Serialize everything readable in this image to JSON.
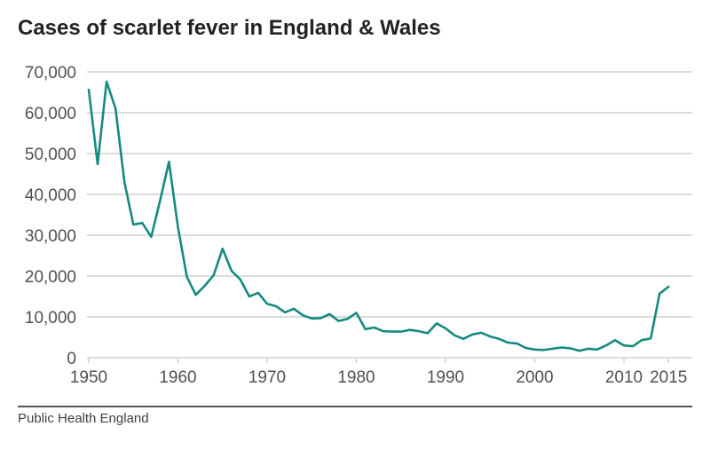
{
  "header": {
    "title": "Cases of scarlet fever in England & Wales"
  },
  "footer": {
    "source": "Public Health England"
  },
  "colors": {
    "line": "#168A80",
    "grid": "#dcdcdc",
    "axis_text": "#505050",
    "divider": "#555555"
  },
  "chart_data": {
    "type": "line",
    "title": "Cases of scarlet fever in England & Wales",
    "xlabel": "",
    "ylabel": "",
    "ylim": [
      0,
      70000
    ],
    "xlim": [
      1950,
      2015
    ],
    "grid": true,
    "legend": null,
    "y_ticks": [
      "0",
      "10,000",
      "20,000",
      "30,000",
      "40,000",
      "50,000",
      "60,000",
      "70,000"
    ],
    "x_ticks": [
      "1950",
      "1960",
      "1970",
      "1980",
      "1990",
      "2000",
      "2010",
      "2015"
    ],
    "x": [
      1950,
      1951,
      1952,
      1953,
      1954,
      1955,
      1956,
      1957,
      1958,
      1959,
      1960,
      1961,
      1962,
      1963,
      1964,
      1965,
      1966,
      1967,
      1968,
      1969,
      1970,
      1971,
      1972,
      1973,
      1974,
      1975,
      1976,
      1977,
      1978,
      1979,
      1980,
      1981,
      1982,
      1983,
      1984,
      1985,
      1986,
      1987,
      1988,
      1989,
      1990,
      1991,
      1992,
      1993,
      1994,
      1995,
      1996,
      1997,
      1998,
      1999,
      2000,
      2001,
      2002,
      2003,
      2004,
      2005,
      2006,
      2007,
      2008,
      2009,
      2010,
      2011,
      2012,
      2013,
      2014,
      2015
    ],
    "series": [
      {
        "name": "Cases",
        "values": [
          65600,
          47400,
          67600,
          61000,
          43000,
          32600,
          33000,
          29600,
          38500,
          48000,
          32000,
          19800,
          15400,
          17600,
          20200,
          26700,
          21300,
          19100,
          15000,
          15900,
          13200,
          12600,
          11100,
          12000,
          10400,
          9600,
          9700,
          10700,
          9000,
          9500,
          11000,
          7000,
          7400,
          6500,
          6400,
          6400,
          6800,
          6500,
          6000,
          8400,
          7200,
          5500,
          4600,
          5700,
          6100,
          5200,
          4600,
          3700,
          3500,
          2400,
          2000,
          1900,
          2200,
          2500,
          2300,
          1700,
          2200,
          2000,
          3000,
          4300,
          3000,
          2800,
          4300,
          4700,
          15700,
          17400
        ]
      }
    ]
  }
}
